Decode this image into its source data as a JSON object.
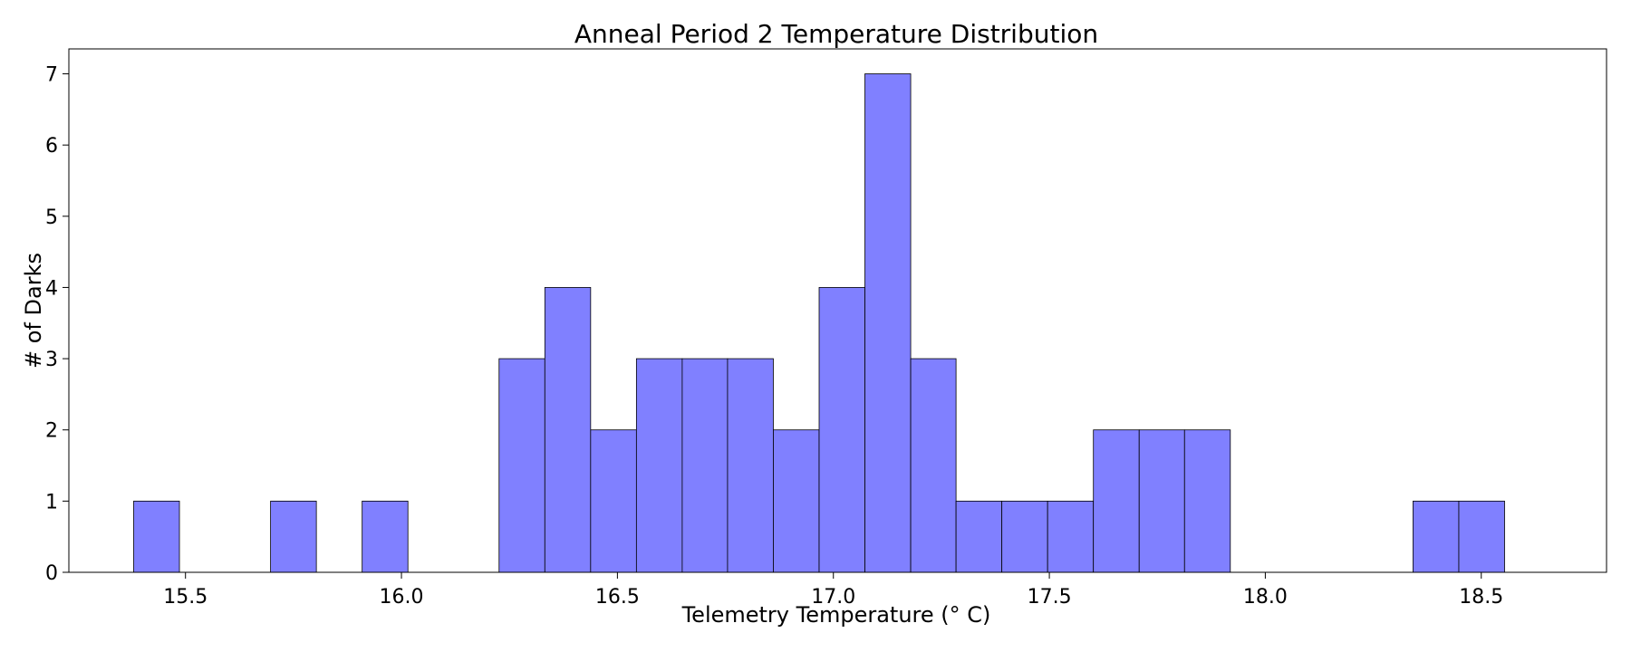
{
  "chart_data": {
    "type": "bar",
    "title": "Anneal Period 2 Temperature Distribution",
    "xlabel": "Telemetry Temperature (° C)",
    "ylabel": "# of Darks",
    "xlim": [
      15.23,
      18.79
    ],
    "ylim": [
      0,
      7.35
    ],
    "xticks": [
      15.5,
      16.0,
      16.5,
      17.0,
      17.5,
      18.0,
      18.5
    ],
    "xtick_labels": [
      "15.5",
      "16.0",
      "16.5",
      "17.0",
      "17.5",
      "18.0",
      "18.5"
    ],
    "yticks": [
      0,
      1,
      2,
      3,
      4,
      5,
      6,
      7
    ],
    "ytick_labels": [
      "0",
      "1",
      "2",
      "3",
      "4",
      "5",
      "6",
      "7"
    ],
    "bin_start": 15.38,
    "bin_width": 0.1058,
    "bins": [
      {
        "x0": 15.38,
        "x1": 15.486,
        "count": 1
      },
      {
        "x0": 15.486,
        "x1": 15.592,
        "count": 0
      },
      {
        "x0": 15.592,
        "x1": 15.697,
        "count": 0
      },
      {
        "x0": 15.697,
        "x1": 15.803,
        "count": 1
      },
      {
        "x0": 15.803,
        "x1": 15.909,
        "count": 0
      },
      {
        "x0": 15.909,
        "x1": 16.015,
        "count": 1
      },
      {
        "x0": 16.015,
        "x1": 16.121,
        "count": 0
      },
      {
        "x0": 16.121,
        "x1": 16.226,
        "count": 0
      },
      {
        "x0": 16.226,
        "x1": 16.332,
        "count": 3
      },
      {
        "x0": 16.332,
        "x1": 16.438,
        "count": 4
      },
      {
        "x0": 16.438,
        "x1": 16.544,
        "count": 2
      },
      {
        "x0": 16.544,
        "x1": 16.65,
        "count": 3
      },
      {
        "x0": 16.65,
        "x1": 16.755,
        "count": 3
      },
      {
        "x0": 16.755,
        "x1": 16.861,
        "count": 3
      },
      {
        "x0": 16.861,
        "x1": 16.967,
        "count": 2
      },
      {
        "x0": 16.967,
        "x1": 17.073,
        "count": 4
      },
      {
        "x0": 17.073,
        "x1": 17.179,
        "count": 7
      },
      {
        "x0": 17.179,
        "x1": 17.284,
        "count": 3
      },
      {
        "x0": 17.284,
        "x1": 17.39,
        "count": 1
      },
      {
        "x0": 17.39,
        "x1": 17.496,
        "count": 1
      },
      {
        "x0": 17.496,
        "x1": 17.602,
        "count": 1
      },
      {
        "x0": 17.602,
        "x1": 17.708,
        "count": 2
      },
      {
        "x0": 17.708,
        "x1": 17.813,
        "count": 2
      },
      {
        "x0": 17.813,
        "x1": 17.919,
        "count": 2
      },
      {
        "x0": 17.919,
        "x1": 18.025,
        "count": 0
      },
      {
        "x0": 18.025,
        "x1": 18.131,
        "count": 0
      },
      {
        "x0": 18.131,
        "x1": 18.237,
        "count": 0
      },
      {
        "x0": 18.237,
        "x1": 18.342,
        "count": 0
      },
      {
        "x0": 18.342,
        "x1": 18.448,
        "count": 1
      },
      {
        "x0": 18.448,
        "x1": 18.554,
        "count": 1
      }
    ],
    "bar_color": "#8080ff",
    "edge_color": "#000000",
    "grid": false,
    "legend": "none"
  }
}
